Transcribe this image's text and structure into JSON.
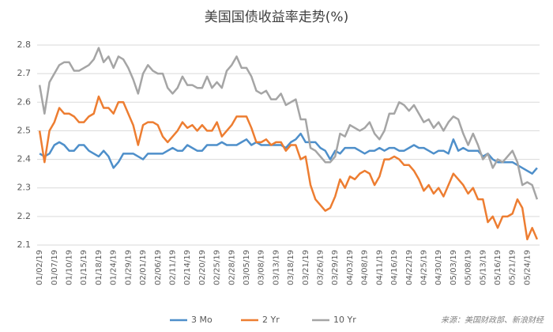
{
  "chart_data": {
    "type": "line",
    "title": "美国国债收益率走势(%)",
    "source": "来源：美国财政部、新浪财经",
    "categories": [
      "01/02/19",
      null,
      null,
      "01/07/19",
      null,
      null,
      "01/10/19",
      null,
      null,
      "01/15/19",
      null,
      null,
      "01/18/19",
      null,
      null,
      "01/24/19",
      null,
      null,
      "01/29/19",
      null,
      null,
      "02/01/19",
      null,
      null,
      "02/06/19",
      null,
      null,
      "02/11/19",
      null,
      null,
      "02/14/19",
      null,
      null,
      "02/20/19",
      null,
      null,
      "02/25/19",
      null,
      null,
      "02/28/19",
      null,
      null,
      "03/05/19",
      null,
      null,
      "03/08/19",
      null,
      null,
      "03/13/19",
      null,
      null,
      "03/18/19",
      null,
      null,
      "03/21/19",
      null,
      null,
      "03/26/19",
      null,
      null,
      "03/29/19",
      null,
      null,
      "04/03/19",
      null,
      null,
      "04/08/19",
      null,
      null,
      "04/11/19",
      null,
      null,
      "04/16/19",
      null,
      null,
      "04/22/19",
      null,
      null,
      "04/25/19",
      null,
      null,
      "04/30/19",
      null,
      null,
      "05/03/19",
      null,
      null,
      "05/08/19",
      null,
      null,
      "05/13/19",
      null,
      null,
      "05/16/19",
      null,
      null,
      "05/21/19",
      null,
      null,
      "05/24/19",
      null,
      null
    ],
    "series": [
      {
        "name": "3 Mo",
        "color": "#4e8fca",
        "values": [
          2.42,
          2.41,
          2.42,
          2.45,
          2.46,
          2.45,
          2.43,
          2.43,
          2.45,
          2.45,
          2.43,
          2.42,
          2.41,
          2.43,
          2.41,
          2.37,
          2.39,
          2.42,
          2.42,
          2.42,
          2.41,
          2.4,
          2.42,
          2.42,
          2.42,
          2.42,
          2.43,
          2.44,
          2.43,
          2.43,
          2.45,
          2.44,
          2.43,
          2.43,
          2.45,
          2.45,
          2.45,
          2.46,
          2.45,
          2.45,
          2.45,
          2.46,
          2.47,
          2.45,
          2.46,
          2.45,
          2.45,
          2.45,
          2.45,
          2.45,
          2.44,
          2.46,
          2.47,
          2.49,
          2.46,
          2.46,
          2.46,
          2.44,
          2.43,
          2.4,
          2.43,
          2.42,
          2.44,
          2.44,
          2.44,
          2.43,
          2.42,
          2.43,
          2.43,
          2.44,
          2.43,
          2.44,
          2.44,
          2.43,
          2.43,
          2.44,
          2.45,
          2.44,
          2.44,
          2.43,
          2.42,
          2.43,
          2.43,
          2.42,
          2.47,
          2.43,
          2.44,
          2.43,
          2.43,
          2.43,
          2.41,
          2.42,
          2.4,
          2.39,
          2.39,
          2.39,
          2.39,
          2.38,
          2.37,
          2.36,
          2.35,
          2.37
        ]
      },
      {
        "name": "2 Yr",
        "color": "#ed7d31",
        "values": [
          2.5,
          2.39,
          2.5,
          2.53,
          2.58,
          2.56,
          2.56,
          2.55,
          2.53,
          2.53,
          2.55,
          2.56,
          2.62,
          2.58,
          2.58,
          2.56,
          2.6,
          2.6,
          2.56,
          2.52,
          2.45,
          2.52,
          2.53,
          2.53,
          2.52,
          2.48,
          2.46,
          2.48,
          2.5,
          2.53,
          2.51,
          2.52,
          2.5,
          2.52,
          2.5,
          2.5,
          2.53,
          2.48,
          2.5,
          2.52,
          2.55,
          2.55,
          2.55,
          2.51,
          2.46,
          2.46,
          2.47,
          2.45,
          2.46,
          2.46,
          2.43,
          2.45,
          2.45,
          2.4,
          2.41,
          2.31,
          2.26,
          2.24,
          2.22,
          2.23,
          2.27,
          2.33,
          2.3,
          2.34,
          2.33,
          2.35,
          2.36,
          2.35,
          2.31,
          2.34,
          2.4,
          2.4,
          2.41,
          2.4,
          2.38,
          2.38,
          2.36,
          2.33,
          2.29,
          2.31,
          2.28,
          2.3,
          2.27,
          2.31,
          2.35,
          2.33,
          2.31,
          2.28,
          2.3,
          2.26,
          2.26,
          2.18,
          2.2,
          2.16,
          2.2,
          2.2,
          2.21,
          2.26,
          2.23,
          2.12,
          2.16,
          2.12
        ]
      },
      {
        "name": "10 Yr",
        "color": "#a5a5a5",
        "values": [
          2.66,
          2.56,
          2.67,
          2.7,
          2.73,
          2.74,
          2.74,
          2.71,
          2.71,
          2.72,
          2.73,
          2.75,
          2.79,
          2.74,
          2.76,
          2.72,
          2.76,
          2.75,
          2.72,
          2.68,
          2.63,
          2.7,
          2.73,
          2.71,
          2.7,
          2.7,
          2.65,
          2.63,
          2.65,
          2.69,
          2.66,
          2.66,
          2.65,
          2.65,
          2.69,
          2.65,
          2.67,
          2.65,
          2.71,
          2.73,
          2.76,
          2.72,
          2.72,
          2.69,
          2.64,
          2.63,
          2.64,
          2.61,
          2.61,
          2.63,
          2.59,
          2.6,
          2.61,
          2.54,
          2.54,
          2.44,
          2.43,
          2.41,
          2.39,
          2.39,
          2.41,
          2.49,
          2.48,
          2.52,
          2.51,
          2.5,
          2.51,
          2.53,
          2.49,
          2.47,
          2.5,
          2.56,
          2.56,
          2.6,
          2.59,
          2.57,
          2.59,
          2.56,
          2.53,
          2.54,
          2.51,
          2.53,
          2.5,
          2.53,
          2.55,
          2.54,
          2.49,
          2.45,
          2.49,
          2.45,
          2.4,
          2.42,
          2.37,
          2.4,
          2.39,
          2.41,
          2.43,
          2.39,
          2.31,
          2.32,
          2.31,
          2.26
        ]
      }
    ],
    "ylim": [
      2.1,
      2.8
    ],
    "yticks": [
      2.1,
      2.2,
      2.3,
      2.4,
      2.5,
      2.6,
      2.7,
      2.8
    ],
    "grid": true
  }
}
